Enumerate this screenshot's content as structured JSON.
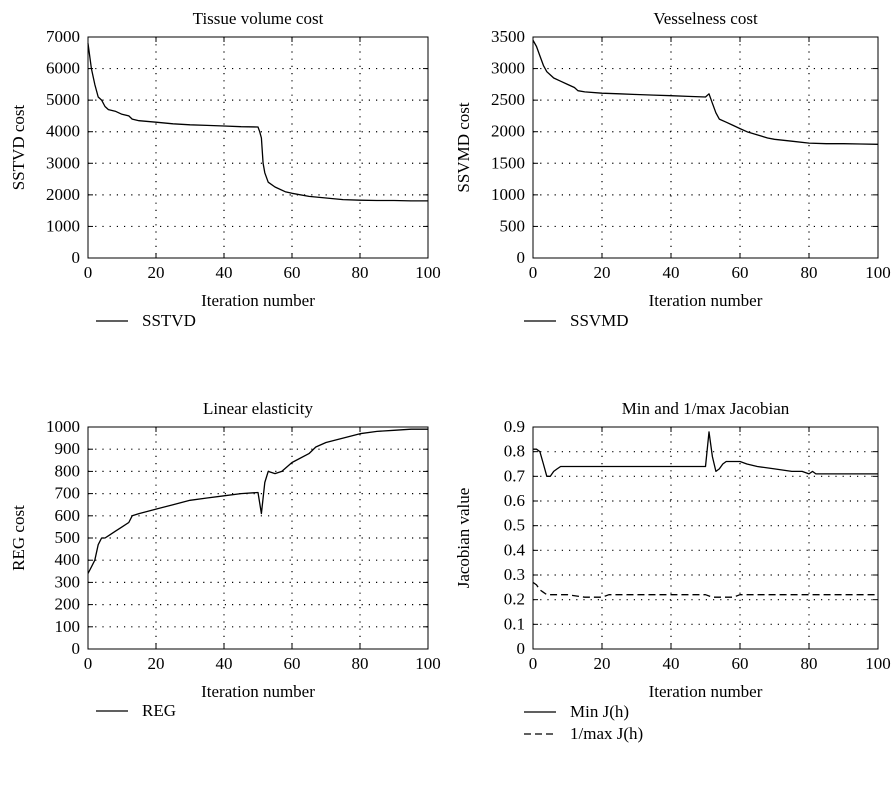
{
  "chart_data": [
    {
      "type": "line",
      "title": "Tissue volume cost",
      "xlabel": "Iteration number",
      "ylabel": "SSTVD cost",
      "xlim": [
        0,
        100
      ],
      "ylim": [
        0,
        7000
      ],
      "xticks": [
        0,
        20,
        40,
        60,
        80,
        100
      ],
      "yticks": [
        0,
        1000,
        2000,
        3000,
        4000,
        5000,
        6000,
        7000
      ],
      "grid": true,
      "legend_position": "below",
      "series": [
        {
          "name": "SSTVD",
          "style": "solid",
          "x": [
            0,
            1,
            2,
            3,
            4,
            5,
            6,
            8,
            10,
            12,
            13,
            15,
            20,
            25,
            30,
            35,
            40,
            45,
            50,
            50.5,
            51,
            51.5,
            52,
            53,
            55,
            58,
            60,
            65,
            70,
            75,
            80,
            85,
            90,
            95,
            100
          ],
          "y": [
            6800,
            6000,
            5500,
            5100,
            5000,
            4800,
            4700,
            4650,
            4550,
            4500,
            4400,
            4350,
            4300,
            4250,
            4220,
            4200,
            4180,
            4160,
            4150,
            4000,
            3800,
            3000,
            2700,
            2400,
            2250,
            2100,
            2050,
            1950,
            1900,
            1850,
            1830,
            1820,
            1820,
            1810,
            1810
          ]
        }
      ]
    },
    {
      "type": "line",
      "title": "Vesselness cost",
      "xlabel": "Iteration number",
      "ylabel": "SSVMD cost",
      "xlim": [
        0,
        100
      ],
      "ylim": [
        0,
        3500
      ],
      "xticks": [
        0,
        20,
        40,
        60,
        80,
        100
      ],
      "yticks": [
        0,
        500,
        1000,
        1500,
        2000,
        2500,
        3000,
        3500
      ],
      "grid": true,
      "legend_position": "below",
      "series": [
        {
          "name": "SSVMD",
          "style": "solid",
          "x": [
            0,
            1,
            2,
            3,
            4,
            5,
            6,
            8,
            10,
            12,
            13,
            15,
            20,
            25,
            30,
            35,
            40,
            45,
            50,
            51,
            52,
            53,
            54,
            56,
            58,
            60,
            62,
            65,
            68,
            70,
            75,
            80,
            85,
            90,
            95,
            100
          ],
          "y": [
            3450,
            3350,
            3200,
            3050,
            2950,
            2900,
            2850,
            2800,
            2750,
            2700,
            2650,
            2630,
            2610,
            2600,
            2590,
            2580,
            2570,
            2560,
            2550,
            2600,
            2450,
            2300,
            2200,
            2150,
            2100,
            2050,
            2000,
            1950,
            1900,
            1880,
            1850,
            1820,
            1810,
            1810,
            1805,
            1800
          ]
        }
      ]
    },
    {
      "type": "line",
      "title": "Linear elasticity",
      "xlabel": "Iteration number",
      "ylabel": "REG cost",
      "xlim": [
        0,
        100
      ],
      "ylim": [
        0,
        1000
      ],
      "xticks": [
        0,
        20,
        40,
        60,
        80,
        100
      ],
      "yticks": [
        0,
        100,
        200,
        300,
        400,
        500,
        600,
        700,
        800,
        900,
        1000
      ],
      "grid": true,
      "legend_position": "below",
      "series": [
        {
          "name": "REG",
          "style": "solid",
          "x": [
            0,
            1,
            2,
            3,
            4,
            5,
            6,
            8,
            10,
            12,
            13,
            15,
            20,
            25,
            30,
            35,
            40,
            45,
            50,
            51,
            52,
            53,
            55,
            57,
            60,
            65,
            67,
            70,
            75,
            80,
            85,
            90,
            95,
            100
          ],
          "y": [
            340,
            370,
            400,
            470,
            500,
            500,
            510,
            530,
            550,
            570,
            600,
            610,
            630,
            650,
            670,
            680,
            690,
            700,
            705,
            610,
            750,
            800,
            790,
            800,
            840,
            880,
            910,
            930,
            950,
            970,
            980,
            985,
            990,
            990
          ]
        }
      ]
    },
    {
      "type": "line",
      "title": "Min and 1/max Jacobian",
      "xlabel": "Iteration number",
      "ylabel": "Jacobian value",
      "xlim": [
        0,
        100
      ],
      "ylim": [
        0,
        0.9
      ],
      "xticks": [
        0,
        20,
        40,
        60,
        80,
        100
      ],
      "yticks": [
        0,
        0.1,
        0.2,
        0.3,
        0.4,
        0.5,
        0.6,
        0.7,
        0.8,
        0.9
      ],
      "grid": true,
      "legend_position": "below",
      "series": [
        {
          "name": "Min J(h)",
          "style": "solid",
          "x": [
            0,
            1,
            2,
            3,
            4,
            5,
            6,
            7,
            8,
            10,
            20,
            30,
            40,
            45,
            50,
            51,
            52,
            53,
            54,
            55,
            56,
            58,
            60,
            62,
            65,
            70,
            75,
            78,
            80,
            81,
            82,
            85,
            90,
            95,
            100
          ],
          "y": [
            0.81,
            0.81,
            0.8,
            0.75,
            0.7,
            0.7,
            0.72,
            0.73,
            0.74,
            0.74,
            0.74,
            0.74,
            0.74,
            0.74,
            0.74,
            0.88,
            0.78,
            0.72,
            0.73,
            0.75,
            0.76,
            0.76,
            0.76,
            0.75,
            0.74,
            0.73,
            0.72,
            0.72,
            0.71,
            0.72,
            0.71,
            0.71,
            0.71,
            0.71,
            0.71
          ]
        },
        {
          "name": "1/max J(h)",
          "style": "dashed",
          "x": [
            0,
            1,
            2,
            3,
            4,
            5,
            10,
            15,
            20,
            22,
            25,
            30,
            40,
            50,
            52,
            55,
            58,
            60,
            65,
            70,
            80,
            90,
            100
          ],
          "y": [
            0.27,
            0.26,
            0.24,
            0.23,
            0.22,
            0.22,
            0.22,
            0.21,
            0.21,
            0.22,
            0.22,
            0.22,
            0.22,
            0.22,
            0.21,
            0.21,
            0.21,
            0.22,
            0.22,
            0.22,
            0.22,
            0.22,
            0.22
          ]
        }
      ]
    }
  ]
}
